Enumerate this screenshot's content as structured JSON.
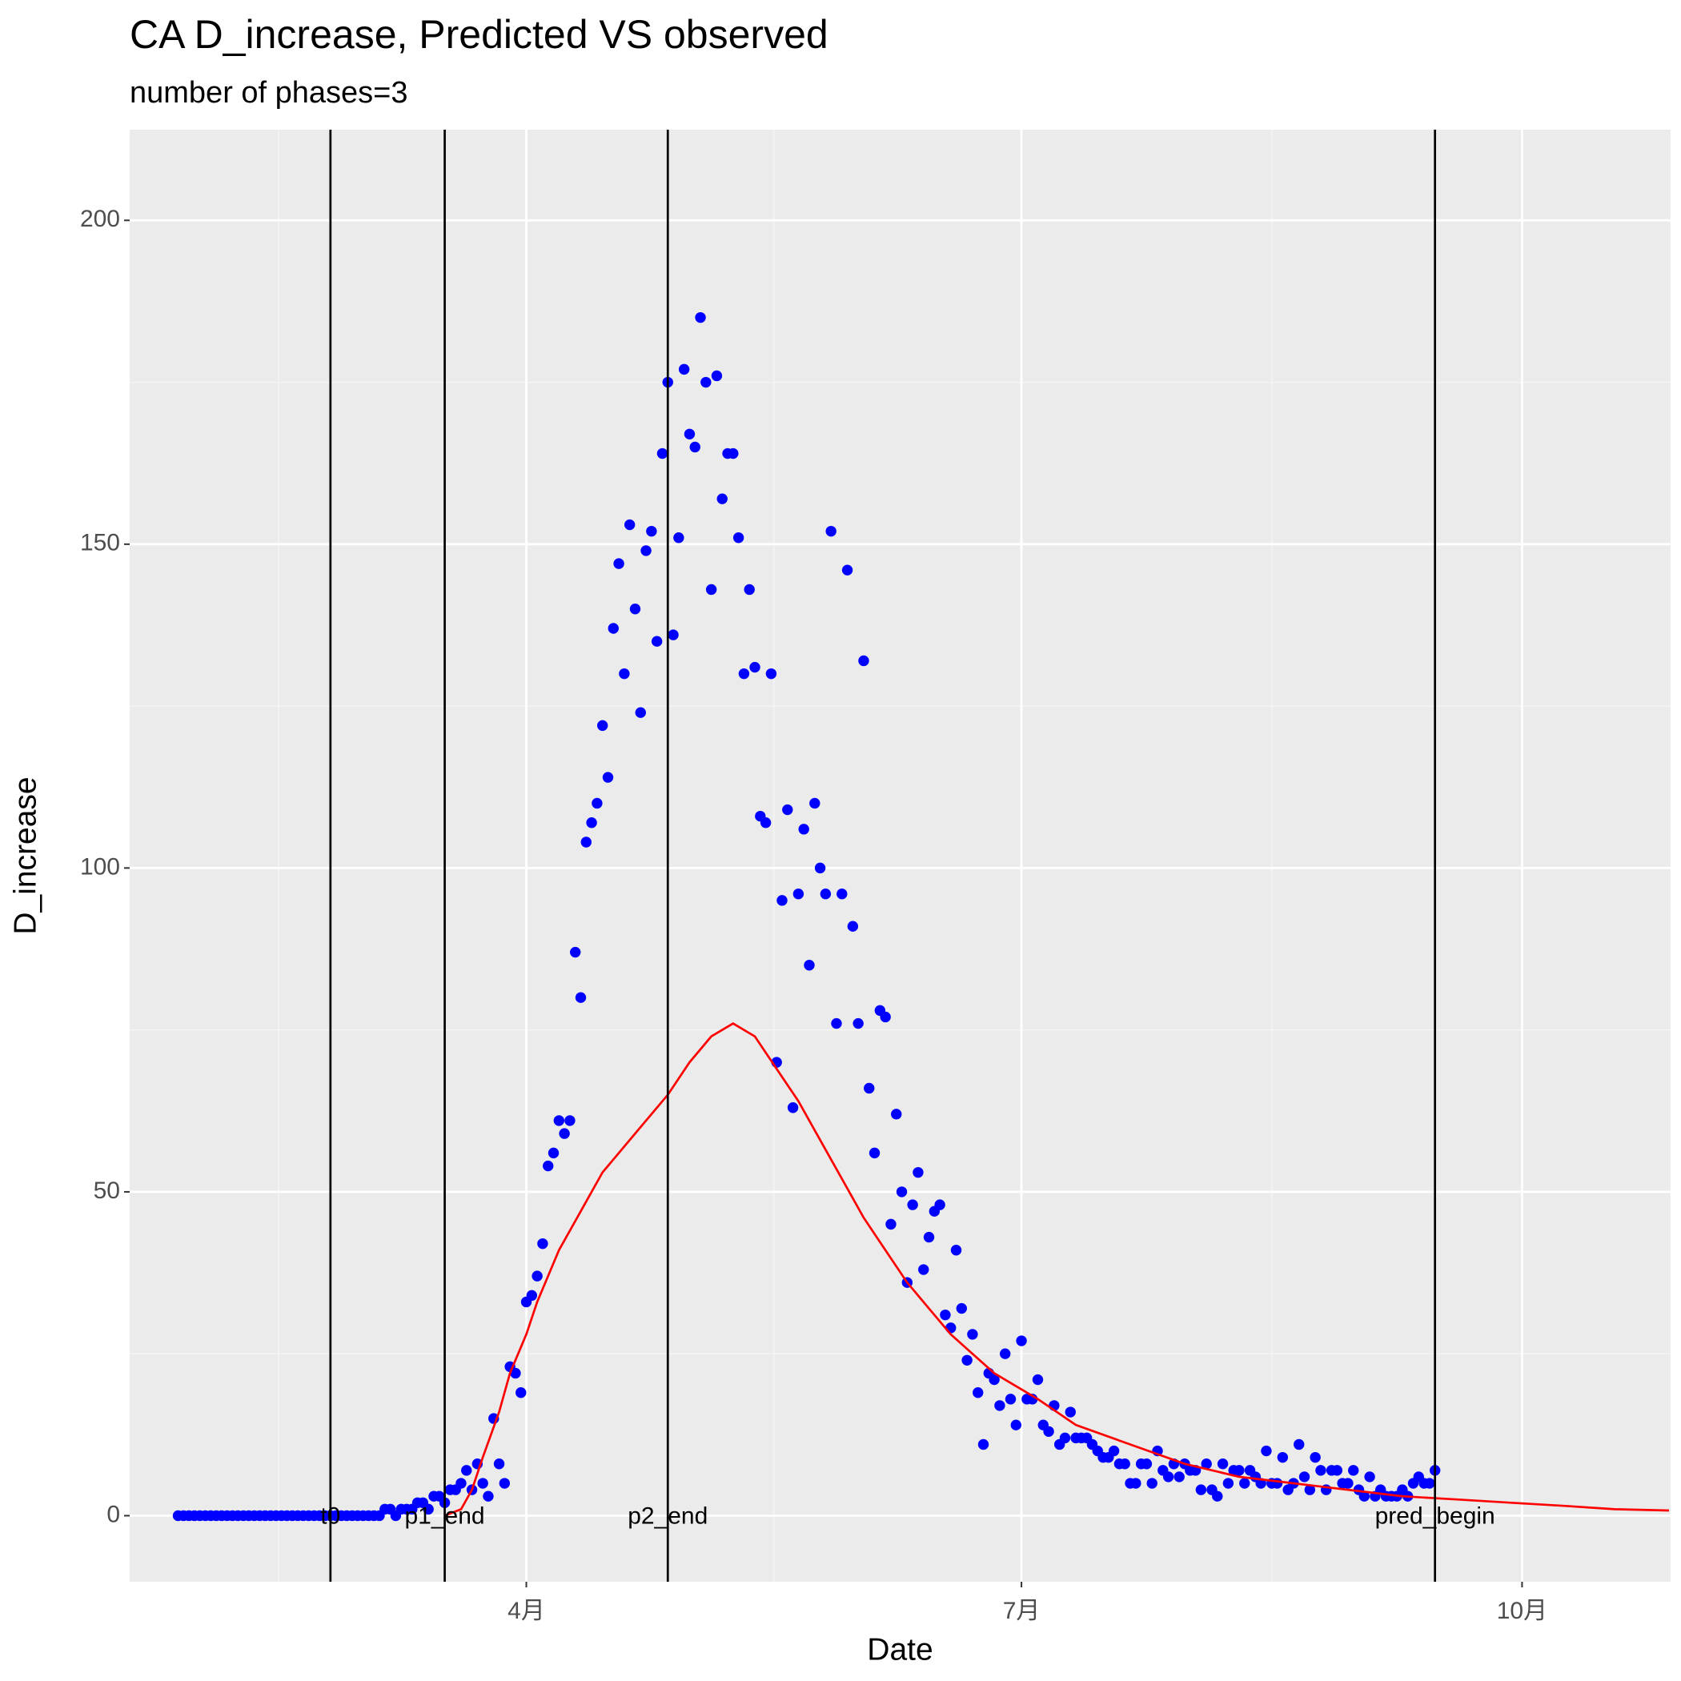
{
  "chart_data": {
    "type": "scatter",
    "title": "CA D_increase, Predicted VS observed",
    "subtitle": "number of phases=3",
    "x_label": "Date",
    "y_label": "D_increase",
    "color": "#0000ff",
    "x": [
      27,
      28,
      29,
      30,
      31,
      32,
      33,
      34,
      35,
      36,
      37,
      38,
      39,
      40,
      41,
      42,
      43,
      44,
      45,
      46,
      47,
      48,
      49,
      50,
      51,
      52,
      53,
      54,
      55,
      56,
      57,
      58,
      59,
      60,
      61,
      62,
      63,
      64,
      65,
      66,
      67,
      68,
      69,
      70,
      71,
      72,
      73,
      74,
      75,
      76,
      77,
      78,
      79,
      80,
      81,
      82,
      83,
      84,
      85,
      86,
      87,
      88,
      89,
      90,
      91,
      92,
      93,
      94,
      95,
      96,
      97,
      98,
      99,
      100,
      101,
      102,
      103,
      104,
      105,
      106,
      107,
      108,
      109,
      110,
      111,
      112,
      113,
      114,
      115,
      116,
      117,
      118,
      119,
      120,
      121,
      122,
      123,
      124,
      125,
      126,
      127,
      128,
      129,
      130,
      131,
      132,
      133,
      134,
      135,
      136,
      137,
      138,
      139,
      140,
      141,
      142,
      143,
      144,
      145,
      146,
      147,
      148,
      149,
      150,
      151,
      152,
      153,
      154,
      155,
      156,
      157,
      158,
      159,
      160,
      161,
      162,
      163,
      164,
      165,
      166,
      167,
      168,
      169,
      170,
      171,
      172,
      173,
      174,
      175,
      176,
      177,
      178,
      179,
      180,
      181,
      182,
      183,
      184,
      185,
      186,
      187,
      188,
      189,
      190,
      191,
      192,
      193,
      194,
      195,
      196,
      197,
      198,
      199,
      200,
      201,
      202,
      203,
      204,
      205,
      206,
      207,
      208,
      209,
      210,
      211,
      212,
      213,
      214,
      215,
      216,
      217,
      218,
      219,
      220,
      221,
      222,
      223,
      224,
      225,
      226,
      227,
      228,
      229,
      230,
      231,
      232,
      233,
      234,
      235,
      236,
      237,
      238,
      239,
      240,
      241,
      242,
      243,
      244,
      245,
      246,
      247,
      248,
      249,
      250,
      251,
      252,
      253,
      254,
      255,
      256,
      257,
      258
    ],
    "values": [
      0,
      0,
      0,
      0,
      0,
      0,
      0,
      0,
      0,
      0,
      0,
      0,
      0,
      0,
      0,
      0,
      0,
      0,
      0,
      0,
      0,
      0,
      0,
      0,
      0,
      0,
      0,
      0,
      0,
      0,
      0,
      0,
      0,
      0,
      0,
      0,
      0,
      0,
      1,
      1,
      0,
      1,
      1,
      1,
      2,
      2,
      1,
      3,
      3,
      2,
      4,
      4,
      5,
      7,
      4,
      8,
      5,
      3,
      15,
      8,
      5,
      23,
      22,
      19,
      33,
      34,
      37,
      42,
      54,
      56,
      61,
      59,
      61,
      87,
      80,
      104,
      107,
      110,
      122,
      114,
      137,
      147,
      130,
      153,
      140,
      124,
      149,
      152,
      135,
      164,
      175,
      136,
      151,
      177,
      167,
      165,
      185,
      175,
      143,
      176,
      157,
      164,
      164,
      151,
      130,
      143,
      131,
      108,
      107,
      130,
      70,
      95,
      109,
      63,
      96,
      106,
      85,
      110,
      100,
      96,
      152,
      76,
      96,
      146,
      91,
      76,
      132,
      66,
      56,
      78,
      77,
      45,
      62,
      50,
      36,
      48,
      53,
      38,
      43,
      47,
      48,
      31,
      29,
      41,
      32,
      24,
      28,
      19,
      11,
      22,
      21,
      17,
      25,
      18,
      14,
      27,
      18,
      18,
      21,
      14,
      13,
      17,
      11,
      12,
      16,
      12,
      12,
      12,
      11,
      10,
      9,
      9,
      10,
      8,
      8,
      5,
      5,
      8,
      8,
      5,
      10,
      7,
      6,
      8,
      6,
      8,
      7,
      7,
      4,
      8,
      4,
      3,
      8,
      5,
      7,
      7,
      5,
      7,
      6,
      5,
      10,
      5,
      5,
      9,
      4,
      5,
      11,
      6,
      4,
      9,
      7,
      4,
      7,
      7,
      5,
      5,
      7,
      4,
      3,
      6,
      3,
      4,
      3,
      3,
      3,
      4,
      3,
      5,
      6,
      5,
      5,
      7
    ],
    "line": {
      "color": "#ff0000",
      "x": [
        76,
        79,
        81,
        83,
        86,
        88,
        91,
        93,
        97,
        101,
        105,
        109,
        113,
        117,
        121,
        125,
        129,
        133,
        137,
        141,
        145,
        149,
        153,
        157,
        161,
        165,
        169,
        173,
        177,
        181,
        185,
        192,
        202,
        212,
        222,
        232,
        242,
        252,
        262,
        272,
        282,
        291,
        301
      ],
      "values": [
        0,
        1,
        4,
        9,
        16,
        22,
        28,
        33,
        41,
        47,
        53,
        57,
        61,
        65,
        70,
        74,
        76,
        74,
        69,
        64,
        58,
        52,
        46,
        41,
        36,
        32,
        28,
        25,
        22,
        20,
        18,
        14,
        11,
        8,
        6,
        5,
        4,
        3,
        2.5,
        2,
        1.5,
        1,
        0.8
      ]
    },
    "vlines": [
      {
        "x": 55,
        "label": "t0"
      },
      {
        "x": 76,
        "label": "p1_end"
      },
      {
        "x": 117,
        "label": "p2_end"
      },
      {
        "x": 258,
        "label": "pred_begin"
      }
    ],
    "xlim": [
      18.1,
      301.3
    ],
    "ylim": [
      -10.2,
      214
    ],
    "xticks": [
      {
        "value": 91,
        "label": "4月"
      },
      {
        "value": 182,
        "label": "7月"
      },
      {
        "value": 274,
        "label": "10月"
      }
    ],
    "yticks": [
      0,
      50,
      100,
      150,
      200
    ],
    "grid": true
  }
}
